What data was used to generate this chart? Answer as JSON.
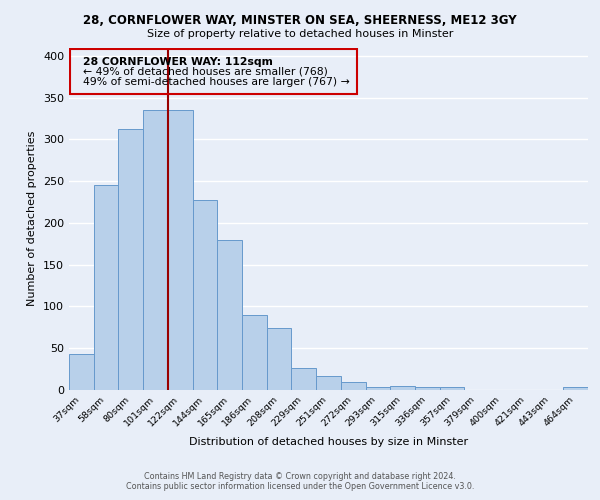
{
  "title": "28, CORNFLOWER WAY, MINSTER ON SEA, SHEERNESS, ME12 3GY",
  "subtitle": "Size of property relative to detached houses in Minster",
  "xlabel": "Distribution of detached houses by size in Minster",
  "ylabel": "Number of detached properties",
  "categories": [
    "37sqm",
    "58sqm",
    "80sqm",
    "101sqm",
    "122sqm",
    "144sqm",
    "165sqm",
    "186sqm",
    "208sqm",
    "229sqm",
    "251sqm",
    "272sqm",
    "293sqm",
    "315sqm",
    "336sqm",
    "357sqm",
    "379sqm",
    "400sqm",
    "421sqm",
    "443sqm",
    "464sqm"
  ],
  "values": [
    43,
    245,
    312,
    335,
    335,
    228,
    180,
    90,
    74,
    26,
    17,
    10,
    4,
    5,
    3,
    3,
    0,
    0,
    0,
    0,
    3
  ],
  "bar_color": "#b8d0ea",
  "bar_edge_color": "#6699cc",
  "line_color": "#990000",
  "annotation_text_line1": "28 CORNFLOWER WAY: 112sqm",
  "annotation_text_line2": "← 49% of detached houses are smaller (768)",
  "annotation_text_line3": "49% of semi-detached houses are larger (767) →",
  "annotation_box_color": "#cc0000",
  "ylim": [
    0,
    410
  ],
  "yticks": [
    0,
    50,
    100,
    150,
    200,
    250,
    300,
    350,
    400
  ],
  "bg_color": "#e8eef8",
  "grid_color": "#ffffff",
  "footer_line1": "Contains HM Land Registry data © Crown copyright and database right 2024.",
  "footer_line2": "Contains public sector information licensed under the Open Government Licence v3.0."
}
